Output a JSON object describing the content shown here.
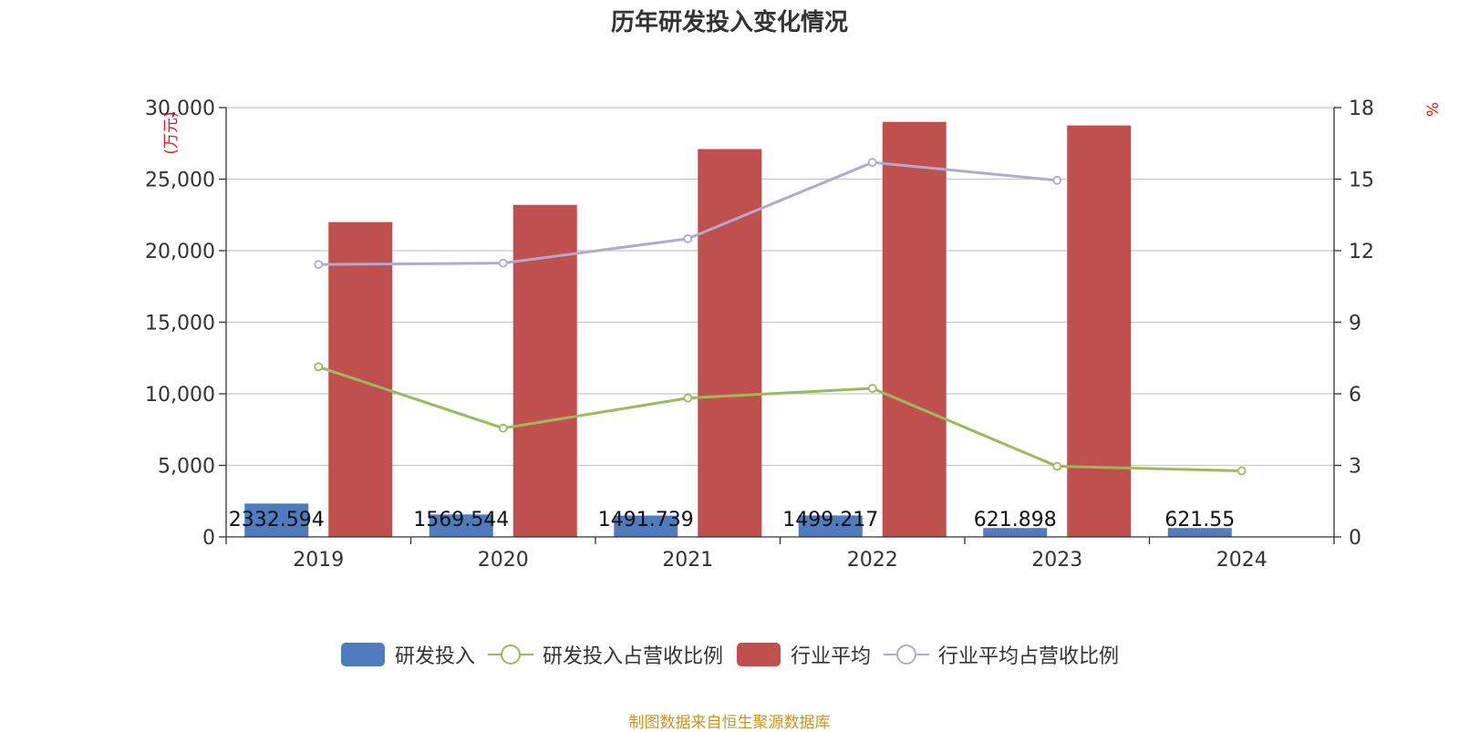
{
  "chart_data": {
    "type": "bar",
    "title": "历年研发投入变化情况",
    "categories": [
      "2019",
      "2020",
      "2021",
      "2022",
      "2023",
      "2024"
    ],
    "y_left": {
      "label": "(万元)",
      "min": 0,
      "max": 30000,
      "ticks": [
        "0",
        "5,000",
        "10,000",
        "15,000",
        "20,000",
        "25,000",
        "30,000"
      ]
    },
    "y_right": {
      "label": "%",
      "min": 0,
      "max": 18,
      "ticks": [
        "0",
        "3",
        "6",
        "9",
        "12",
        "15",
        "18"
      ]
    },
    "series": [
      {
        "name": "研发投入",
        "kind": "bar",
        "axis": "left",
        "color": "#4f7cbf",
        "values": [
          2332.594,
          1569.544,
          1491.739,
          1499.217,
          621.898,
          621.55
        ],
        "labels": [
          "2332.594",
          "1569.544",
          "1491.739",
          "1499.217",
          "621.898",
          "621.55"
        ]
      },
      {
        "name": "研发投入占营收比例",
        "kind": "line",
        "axis": "right",
        "color": "#9bbb59",
        "values": [
          7.13,
          4.56,
          5.82,
          6.23,
          2.96,
          2.77
        ]
      },
      {
        "name": "行业平均",
        "kind": "bar",
        "axis": "left",
        "color": "#c0504d",
        "values": [
          22000,
          23200,
          27100,
          29000,
          28750,
          null
        ]
      },
      {
        "name": "行业平均占营收比例",
        "kind": "line",
        "axis": "right",
        "color": "#b3a8d0",
        "values": [
          11.42,
          11.48,
          12.5,
          15.7,
          14.95,
          null
        ]
      }
    ],
    "legend_position": "bottom",
    "grid": true
  },
  "source_note": "制图数据来自恒生聚源数据库"
}
